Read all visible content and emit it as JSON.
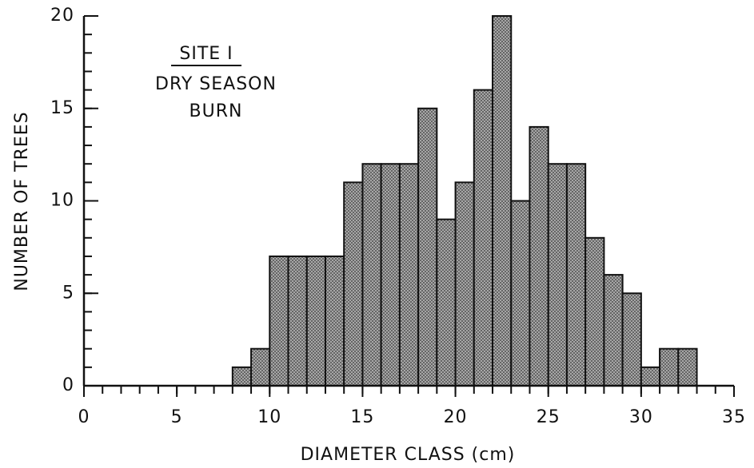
{
  "chart_data": {
    "type": "histogram",
    "annotations": [
      "SITE I",
      "DRY SEASON",
      "BURN"
    ],
    "xlabel": "DIAMETER CLASS (cm)",
    "ylabel": "NUMBER OF TREES",
    "bins": [
      8,
      9,
      10,
      11,
      12,
      13,
      14,
      15,
      16,
      17,
      18,
      19,
      20,
      21,
      22,
      23,
      24,
      25,
      26,
      27,
      28,
      29,
      30,
      31,
      32,
      33
    ],
    "values": [
      1,
      2,
      7,
      7,
      7,
      7,
      11,
      12,
      12,
      12,
      15,
      9,
      11,
      16,
      20,
      10,
      14,
      12,
      12,
      8,
      6,
      5,
      1,
      2,
      2
    ],
    "color": "#9a9a9a",
    "xlim": [
      0,
      35
    ],
    "xticks": [
      0,
      5,
      10,
      15,
      20,
      25,
      30,
      35
    ],
    "xticks_minor": [
      0,
      1,
      2,
      3,
      4,
      5,
      6,
      7,
      8,
      9,
      10,
      11,
      12,
      13,
      14,
      15,
      16,
      17,
      18,
      19,
      20,
      21,
      22,
      23,
      24,
      25,
      26,
      27,
      28,
      29,
      30,
      31,
      32,
      33,
      34,
      35
    ],
    "ylim": [
      0,
      20
    ],
    "yticks": [
      0,
      5,
      10,
      15,
      20
    ],
    "yticks_minor": [
      0,
      1,
      2,
      3,
      4,
      5,
      6,
      7,
      8,
      9,
      10,
      11,
      12,
      13,
      14,
      15,
      16,
      17,
      18,
      19,
      20
    ]
  }
}
